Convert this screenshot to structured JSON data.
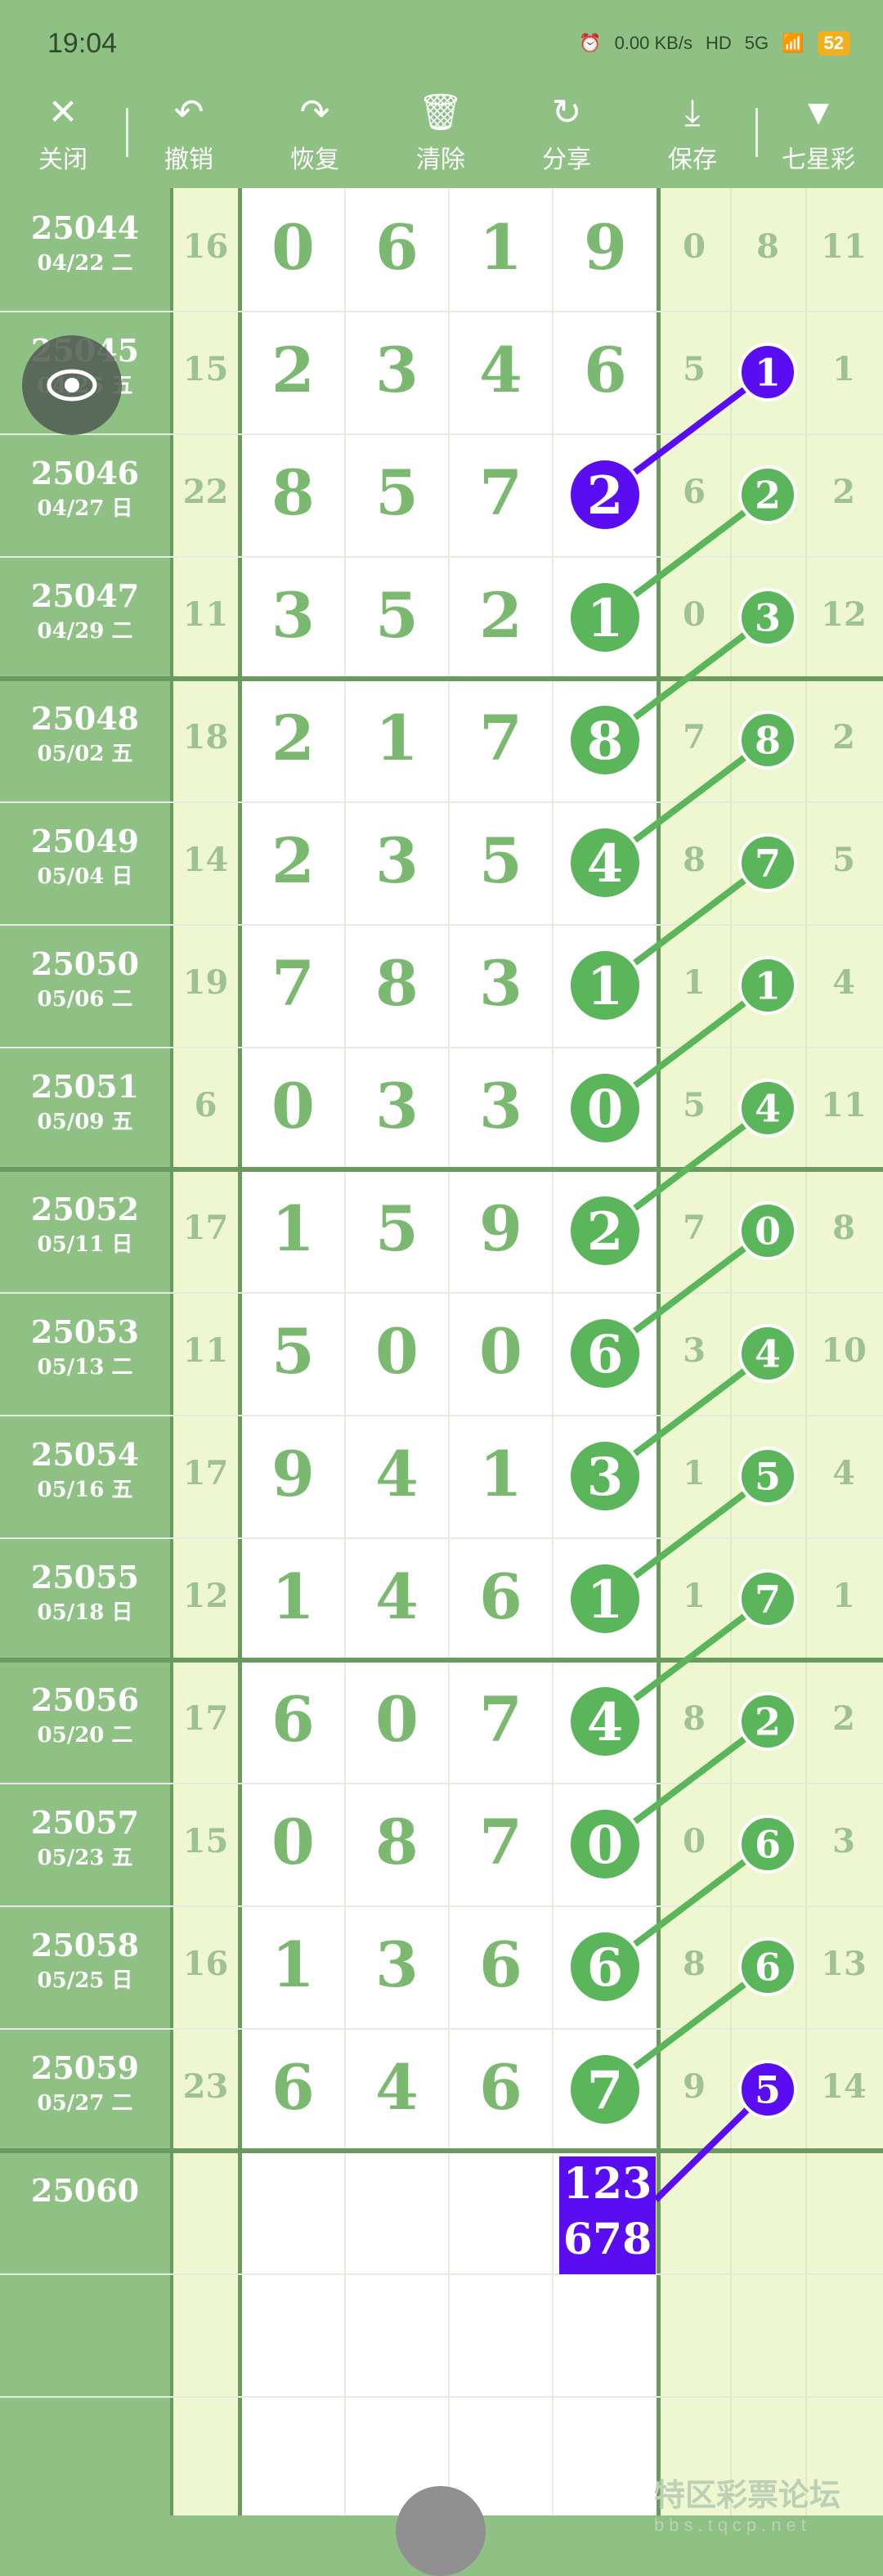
{
  "status_bar": {
    "time": "19:04",
    "speed": "0.00 KB/s",
    "hd": "HD",
    "network": "5G",
    "battery": "52"
  },
  "toolbar": [
    {
      "icon": "close-icon",
      "glyph": "✕",
      "label": "关闭"
    },
    {
      "icon": "undo-icon",
      "glyph": "↶",
      "label": "撤销"
    },
    {
      "icon": "redo-icon",
      "glyph": "↷",
      "label": "恢复"
    },
    {
      "icon": "trash-icon",
      "glyph": "🗑",
      "label": "清除"
    },
    {
      "icon": "share-icon",
      "glyph": "↻",
      "label": "分享"
    },
    {
      "icon": "download-icon",
      "glyph": "⤓",
      "label": "保存"
    },
    {
      "icon": "dropdown-icon",
      "glyph": "▼",
      "label": "七星彩"
    }
  ],
  "colors": {
    "header": "#8fc184",
    "circle_green": "#5bb55a",
    "highlight_purple": "#5a0df0",
    "pale": "#eef7cf"
  },
  "rows": [
    {
      "issue": "25044",
      "date": "04/22 二",
      "sum": "16",
      "digits": [
        "0",
        "6",
        "1",
        "9"
      ],
      "right": [
        "0",
        "8",
        "11"
      ]
    },
    {
      "issue": "25045",
      "date": "04/25 五",
      "sum": "15",
      "digits": [
        "2",
        "3",
        "4",
        "6"
      ],
      "right": [
        "5",
        "1",
        "1"
      ]
    },
    {
      "issue": "25046",
      "date": "04/27 日",
      "sum": "22",
      "digits": [
        "8",
        "5",
        "7",
        "2"
      ],
      "right": [
        "6",
        "2",
        "2"
      ]
    },
    {
      "issue": "25047",
      "date": "04/29 二",
      "sum": "11",
      "digits": [
        "3",
        "5",
        "2",
        "1"
      ],
      "right": [
        "0",
        "3",
        "12"
      ]
    },
    {
      "issue": "25048",
      "date": "05/02 五",
      "sum": "18",
      "digits": [
        "2",
        "1",
        "7",
        "8"
      ],
      "right": [
        "7",
        "8",
        "2"
      ]
    },
    {
      "issue": "25049",
      "date": "05/04 日",
      "sum": "14",
      "digits": [
        "2",
        "3",
        "5",
        "4"
      ],
      "right": [
        "8",
        "7",
        "5"
      ]
    },
    {
      "issue": "25050",
      "date": "05/06 二",
      "sum": "19",
      "digits": [
        "7",
        "8",
        "3",
        "1"
      ],
      "right": [
        "1",
        "1",
        "4"
      ]
    },
    {
      "issue": "25051",
      "date": "05/09 五",
      "sum": "6",
      "digits": [
        "0",
        "3",
        "3",
        "0"
      ],
      "right": [
        "5",
        "4",
        "11"
      ]
    },
    {
      "issue": "25052",
      "date": "05/11 日",
      "sum": "17",
      "digits": [
        "1",
        "5",
        "9",
        "2"
      ],
      "right": [
        "7",
        "0",
        "8"
      ]
    },
    {
      "issue": "25053",
      "date": "05/13 二",
      "sum": "11",
      "digits": [
        "5",
        "0",
        "0",
        "6"
      ],
      "right": [
        "3",
        "4",
        "10"
      ]
    },
    {
      "issue": "25054",
      "date": "05/16 五",
      "sum": "17",
      "digits": [
        "9",
        "4",
        "1",
        "3"
      ],
      "right": [
        "1",
        "5",
        "4"
      ]
    },
    {
      "issue": "25055",
      "date": "05/18 日",
      "sum": "12",
      "digits": [
        "1",
        "4",
        "6",
        "1"
      ],
      "right": [
        "1",
        "7",
        "1"
      ]
    },
    {
      "issue": "25056",
      "date": "05/20 二",
      "sum": "17",
      "digits": [
        "6",
        "0",
        "7",
        "4"
      ],
      "right": [
        "8",
        "2",
        "2"
      ]
    },
    {
      "issue": "25057",
      "date": "05/23 五",
      "sum": "15",
      "digits": [
        "0",
        "8",
        "7",
        "0"
      ],
      "right": [
        "0",
        "6",
        "3"
      ]
    },
    {
      "issue": "25058",
      "date": "05/25 日",
      "sum": "16",
      "digits": [
        "1",
        "3",
        "6",
        "6"
      ],
      "right": [
        "8",
        "6",
        "13"
      ]
    },
    {
      "issue": "25059",
      "date": "05/27 二",
      "sum": "23",
      "digits": [
        "6",
        "4",
        "6",
        "7"
      ],
      "right": [
        "9",
        "5",
        "14"
      ]
    }
  ],
  "next": {
    "issue": "25060",
    "prediction_line1": "123",
    "prediction_line2": "678"
  },
  "watermark": {
    "name": "特区彩票论坛",
    "url": "bbs.tqcp.net"
  }
}
